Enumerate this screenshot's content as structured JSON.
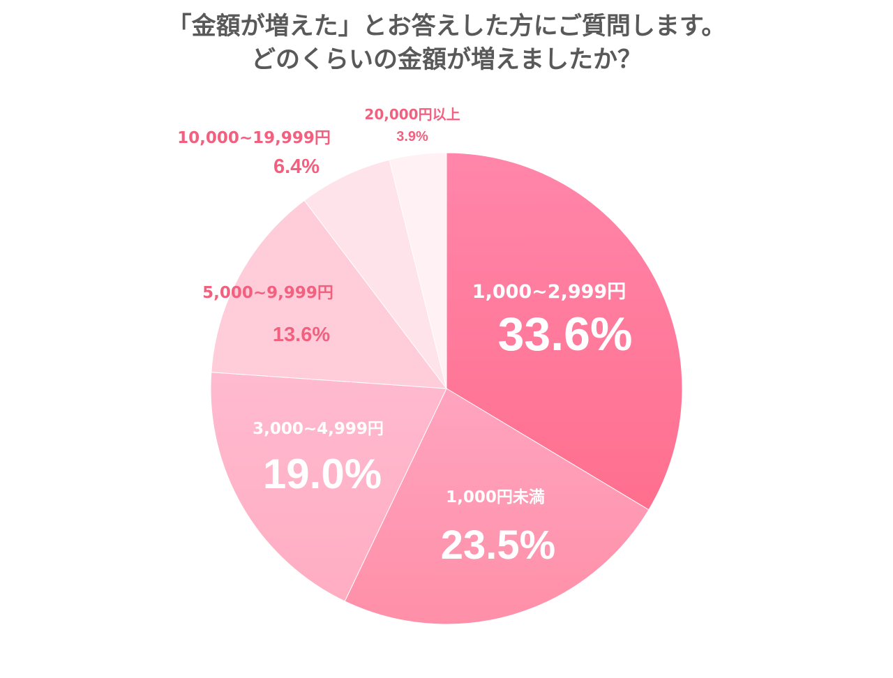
{
  "title": {
    "line1": "「金額が増えた」とお答えした方にご質問します。",
    "line2": "どのくらいの金額が増えましたか？"
  },
  "chart_data": {
    "type": "pie",
    "start": "12 o'clock",
    "direction": "clockwise",
    "slices": [
      {
        "label": "1,000~2,999円",
        "value": 33.6,
        "value_label": "33.6%",
        "color": "#ff7a9c",
        "text_color": "#ffffff",
        "label_position": "inside"
      },
      {
        "label": "1,000円未満",
        "value": 23.5,
        "value_label": "23.5%",
        "color": "#ff99b3",
        "text_color": "#ffffff",
        "label_position": "inside"
      },
      {
        "label": "3,000~4,999円",
        "value": 19.0,
        "value_label": "19.0%",
        "color": "#ffb3c8",
        "text_color": "#ffffff",
        "label_position": "inside"
      },
      {
        "label": "5,000~9,999円",
        "value": 13.6,
        "value_label": "13.6%",
        "color": "#ffccd9",
        "text_color": "#f2607f",
        "label_position": "inside"
      },
      {
        "label": "10,000~19,999円",
        "value": 6.4,
        "value_label": "6.4%",
        "color": "#ffe3ea",
        "text_color": "#f2607f",
        "label_position": "outside"
      },
      {
        "label": "20,000円以上",
        "value": 3.9,
        "value_label": "3.9%",
        "color": "#fff1f4",
        "text_color": "#f2607f",
        "label_position": "outside"
      }
    ]
  }
}
